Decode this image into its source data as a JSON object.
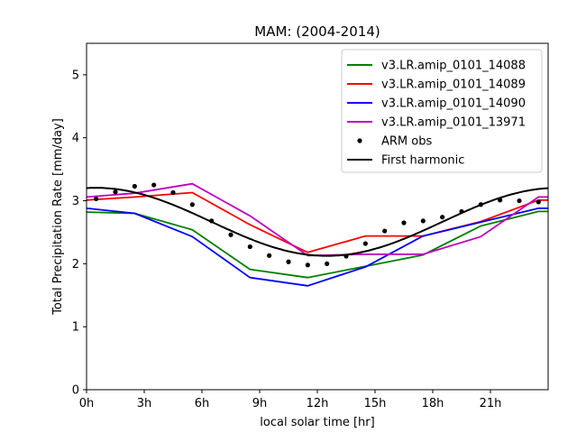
{
  "chart_data": {
    "type": "line",
    "title": "MAM: (2004-2014)",
    "xlabel": "local solar time [hr]",
    "ylabel": "Total Precipitation Rate [mm/day]",
    "xlim": [
      0,
      24
    ],
    "ylim": [
      0,
      5.5
    ],
    "xticks": [
      {
        "value": 0,
        "label": "0h"
      },
      {
        "value": 3,
        "label": "3h"
      },
      {
        "value": 6,
        "label": "6h"
      },
      {
        "value": 9,
        "label": "9h"
      },
      {
        "value": 12,
        "label": "12h"
      },
      {
        "value": 15,
        "label": "15h"
      },
      {
        "value": 18,
        "label": "18h"
      },
      {
        "value": 21,
        "label": "21h"
      }
    ],
    "yticks": [
      {
        "value": 0,
        "label": "0"
      },
      {
        "value": 1,
        "label": "1"
      },
      {
        "value": 2,
        "label": "2"
      },
      {
        "value": 3,
        "label": "3"
      },
      {
        "value": 4,
        "label": "4"
      },
      {
        "value": 5,
        "label": "5"
      }
    ],
    "legend_position": "top-right",
    "grid": false,
    "series": [
      {
        "name": "v3.LR.amip_0101_14088",
        "kind": "line",
        "color": "#008000",
        "x": [
          0,
          2.5,
          5.5,
          8.5,
          11.5,
          14.5,
          17.5,
          20.5,
          23.5,
          24
        ],
        "y": [
          2.82,
          2.8,
          2.54,
          1.91,
          1.78,
          1.96,
          2.14,
          2.6,
          2.83,
          2.83
        ]
      },
      {
        "name": "v3.LR.amip_0101_14089",
        "kind": "line",
        "color": "#ff0000",
        "x": [
          0,
          2.5,
          5.5,
          8.5,
          11.5,
          14.5,
          17.5,
          20.5,
          23.5,
          24
        ],
        "y": [
          3.01,
          3.06,
          3.13,
          2.62,
          2.18,
          2.44,
          2.44,
          2.67,
          3.01,
          3.01
        ]
      },
      {
        "name": "v3.LR.amip_0101_14090",
        "kind": "line",
        "color": "#0000ff",
        "x": [
          0,
          2.5,
          5.5,
          8.5,
          11.5,
          14.5,
          17.5,
          20.5,
          23.5,
          24
        ],
        "y": [
          2.88,
          2.8,
          2.43,
          1.78,
          1.65,
          1.95,
          2.44,
          2.66,
          2.88,
          2.88
        ]
      },
      {
        "name": "v3.LR.amip_0101_13971",
        "kind": "line",
        "color": "#bf00bf",
        "x": [
          0,
          2.5,
          5.5,
          8.5,
          11.5,
          14.5,
          17.5,
          20.5,
          23.5,
          24
        ],
        "y": [
          3.06,
          3.12,
          3.27,
          2.76,
          2.13,
          2.15,
          2.15,
          2.43,
          3.06,
          3.06
        ]
      },
      {
        "name": "ARM obs",
        "kind": "scatter",
        "color": "#000000",
        "x": [
          0.5,
          1.5,
          2.5,
          3.5,
          4.5,
          5.5,
          6.5,
          7.5,
          8.5,
          9.5,
          10.5,
          11.5,
          12.5,
          13.5,
          14.5,
          15.5,
          16.5,
          17.5,
          18.5,
          19.5,
          20.5,
          21.5,
          22.5,
          23.5
        ],
        "y": [
          3.03,
          3.14,
          3.23,
          3.25,
          3.13,
          2.94,
          2.68,
          2.46,
          2.27,
          2.13,
          2.03,
          1.98,
          2.0,
          2.12,
          2.32,
          2.52,
          2.65,
          2.68,
          2.74,
          2.83,
          2.94,
          3.01,
          3.0,
          2.98
        ]
      },
      {
        "name": "First harmonic",
        "kind": "curve",
        "color": "#000000",
        "mean": 2.665,
        "amplitude": 0.54,
        "peak_hour": 0.5,
        "x_range": [
          0,
          24
        ]
      }
    ]
  }
}
